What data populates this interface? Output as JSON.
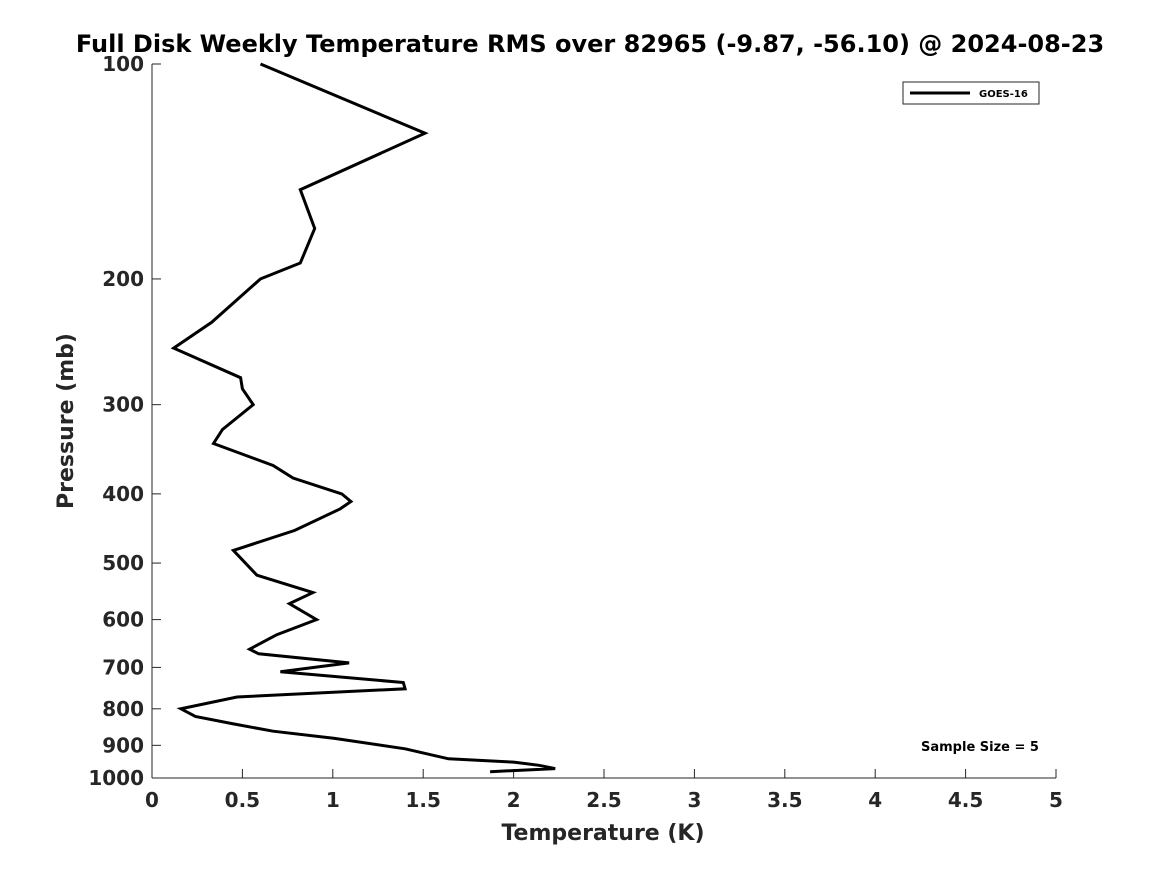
{
  "chart_data": {
    "type": "line",
    "title": "Full Disk Weekly Temperature RMS over 82965 (-9.87, -56.10) @ 2024-08-23",
    "xlabel": "Temperature (K)",
    "ylabel": "Pressure (mb)",
    "xlim": [
      0,
      5
    ],
    "ylim": [
      100,
      1000
    ],
    "y_scale": "log",
    "y_reversed": true,
    "x_ticks": [
      "0",
      "0.5",
      "1",
      "1.5",
      "2",
      "2.5",
      "3",
      "3.5",
      "4",
      "4.5",
      "5"
    ],
    "y_ticks": [
      "100",
      "200",
      "300",
      "400",
      "500",
      "600",
      "700",
      "800",
      "900",
      "1000"
    ],
    "grid": false,
    "legend": {
      "placement": "top-right",
      "entries": [
        "GOES-16"
      ]
    },
    "annotation": "Sample Size = 5",
    "series": [
      {
        "name": "GOES-16",
        "color": "#000000",
        "x": [
          0.6,
          1.51,
          0.82,
          0.9,
          0.82,
          0.6,
          0.33,
          0.12,
          0.49,
          0.5,
          0.56,
          0.39,
          0.34,
          0.67,
          0.78,
          1.05,
          1.1,
          1.04,
          0.79,
          0.45,
          0.58,
          0.89,
          0.76,
          0.91,
          0.69,
          0.54,
          0.59,
          1.09,
          0.71,
          1.39,
          1.4,
          0.47,
          0.16,
          0.24,
          0.45,
          0.67,
          1.01,
          1.4,
          1.64,
          2.0,
          2.14,
          2.23,
          1.87
        ],
        "y": [
          100,
          125,
          150,
          170,
          190,
          200,
          230,
          250,
          275,
          285,
          300,
          325,
          340,
          365,
          380,
          400,
          410,
          420,
          450,
          480,
          520,
          550,
          570,
          600,
          630,
          660,
          670,
          690,
          710,
          735,
          750,
          770,
          800,
          820,
          840,
          860,
          880,
          910,
          940,
          950,
          960,
          970,
          980
        ]
      }
    ]
  }
}
